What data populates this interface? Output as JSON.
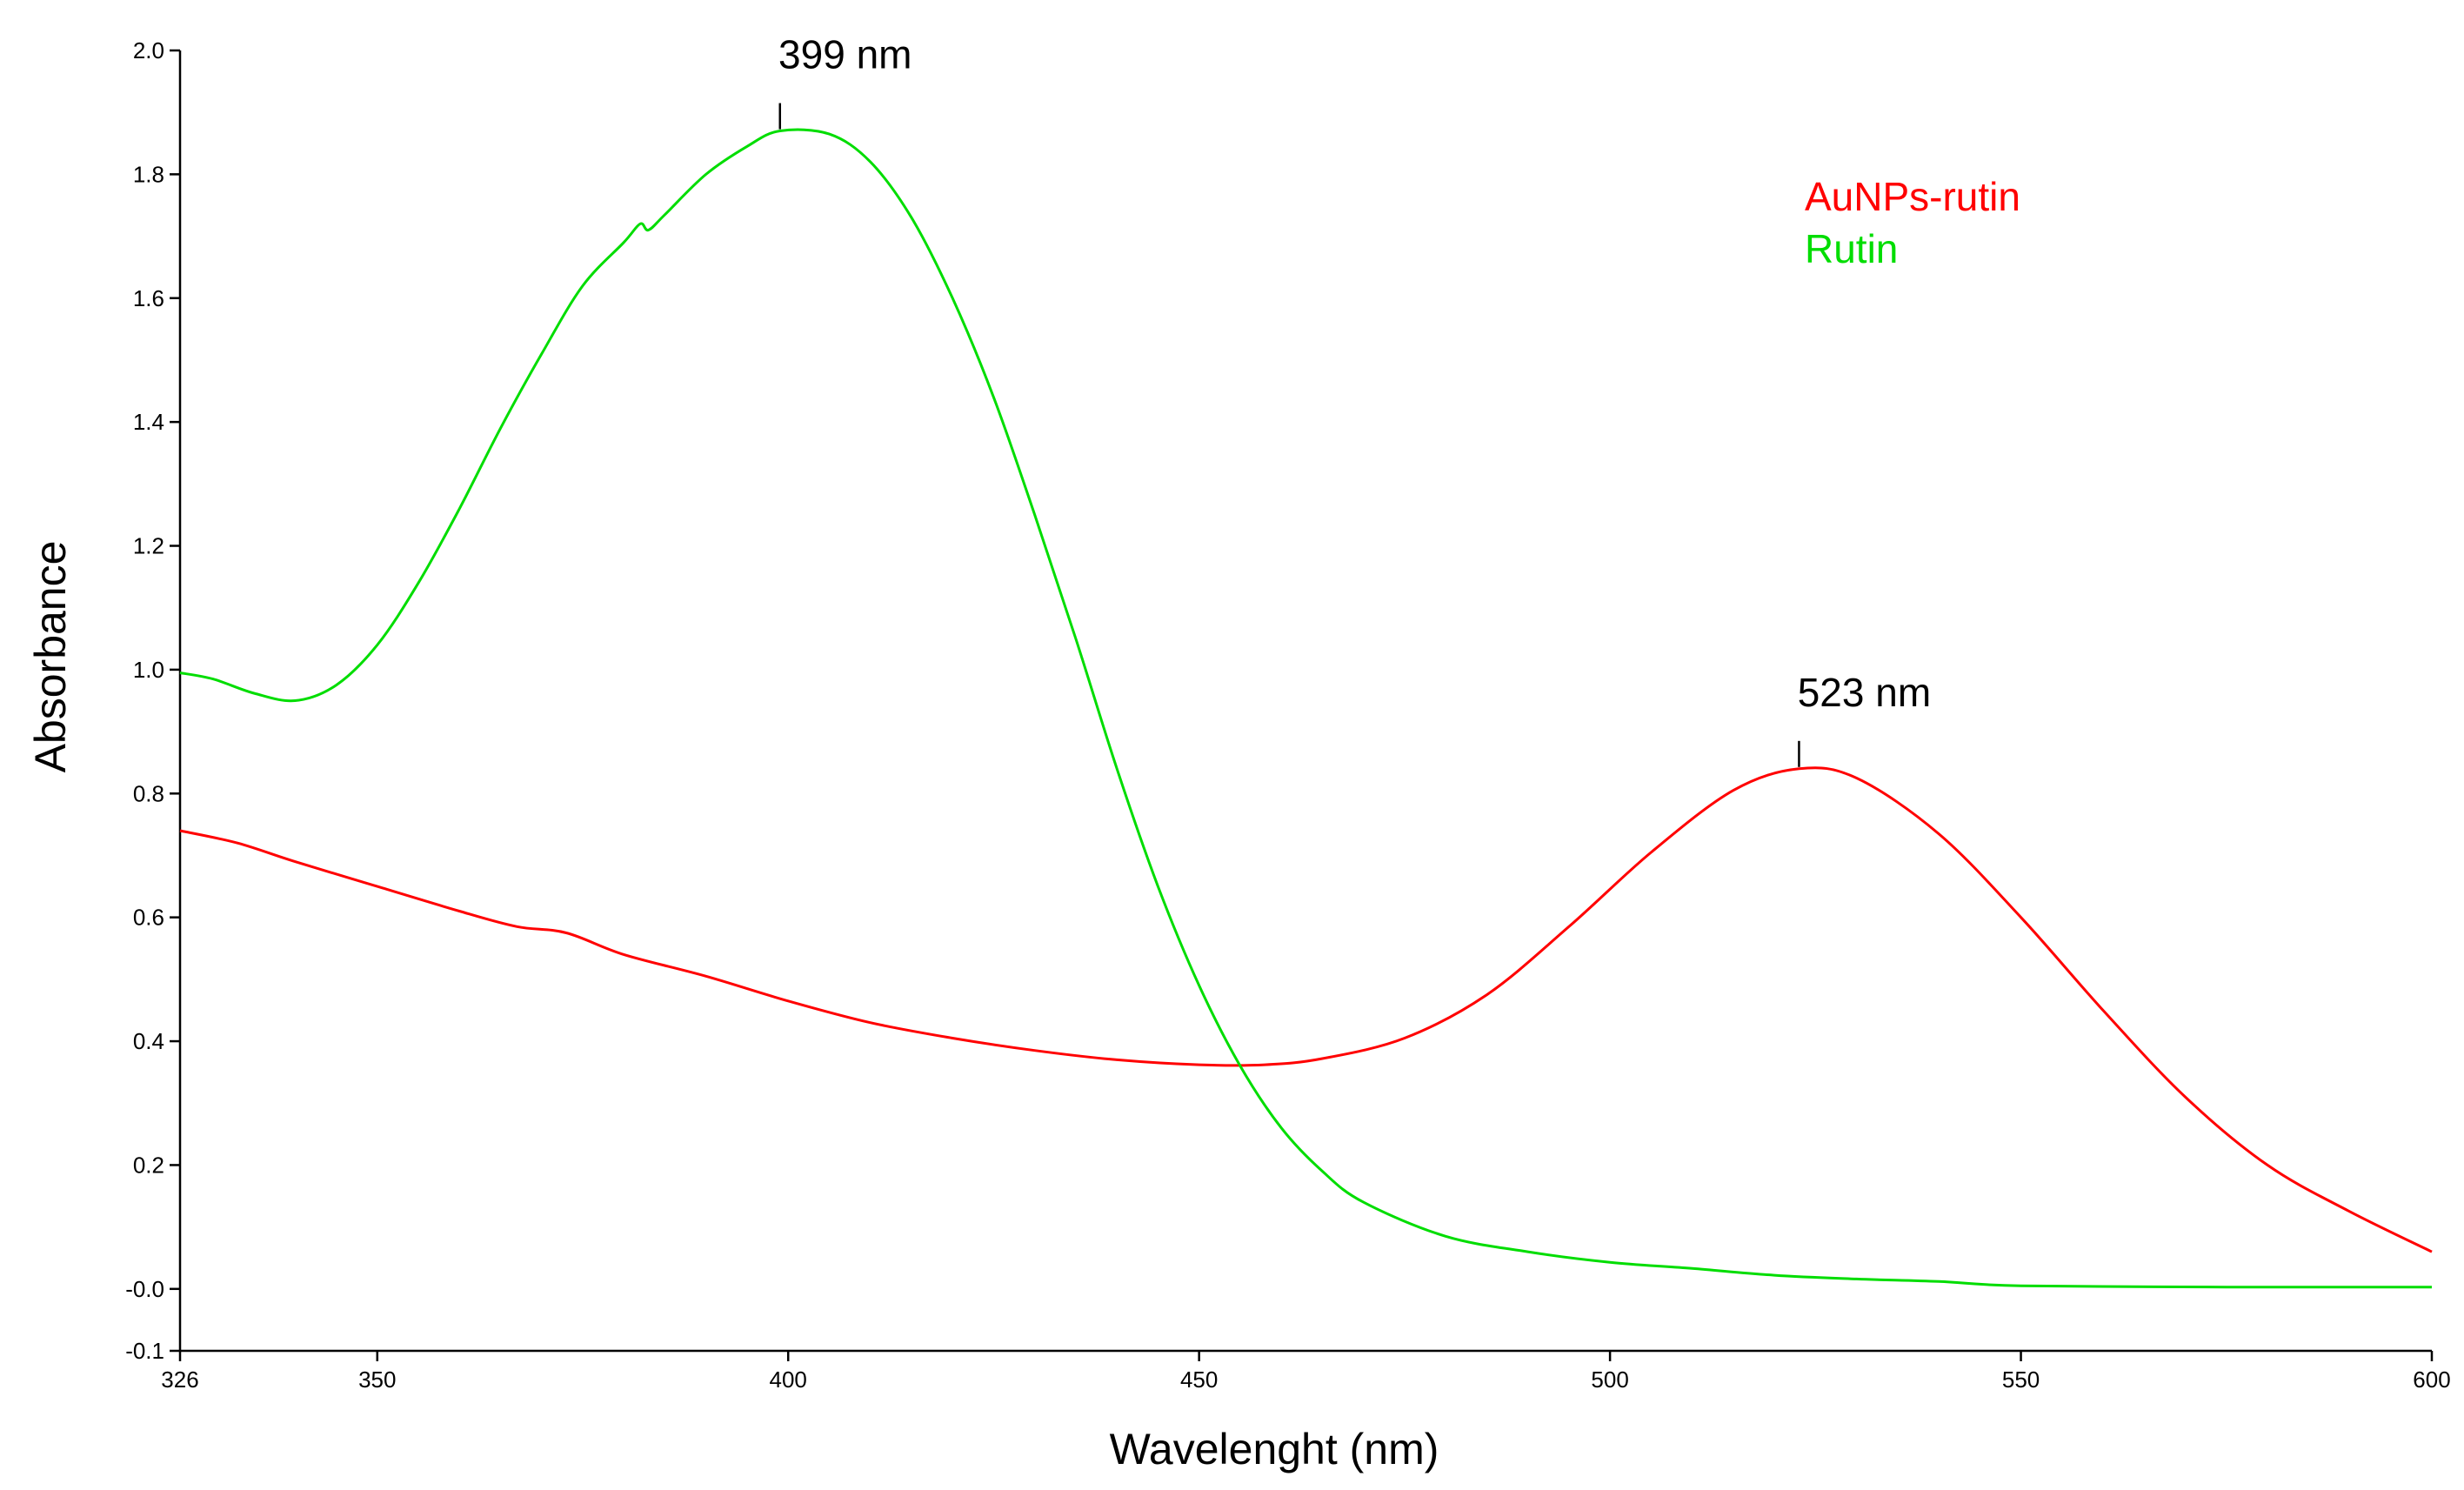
{
  "chart_data": {
    "type": "line",
    "title": "",
    "xlabel": "Wavelenght (nm)",
    "ylabel": "Absorbance",
    "xlim": [
      326,
      600
    ],
    "ylim": [
      -0.1,
      2.0
    ],
    "grid": false,
    "x_ticks": [
      326,
      350,
      400,
      450,
      500,
      550,
      600
    ],
    "x_tick_labels": [
      "326",
      "350",
      "400",
      "450",
      "500",
      "550",
      "600"
    ],
    "y_ticks": [
      -0.1,
      0.0,
      0.2,
      0.4,
      0.6,
      0.8,
      1.0,
      1.2,
      1.4,
      1.6,
      1.8,
      2.0
    ],
    "y_tick_labels": [
      "-0.1",
      "-0.0",
      "0.2",
      "0.4",
      "0.6",
      "0.8",
      "1.0",
      "1.2",
      "1.4",
      "1.6",
      "1.8",
      "2.0"
    ],
    "legend_position": "top-right",
    "series": [
      {
        "name": "AuNPs-rutin",
        "color": "#ff0000",
        "points": [
          [
            326,
            0.74
          ],
          [
            333,
            0.72
          ],
          [
            340,
            0.69
          ],
          [
            350,
            0.65
          ],
          [
            360,
            0.61
          ],
          [
            367,
            0.585
          ],
          [
            373,
            0.575
          ],
          [
            380,
            0.54
          ],
          [
            390,
            0.505
          ],
          [
            400,
            0.465
          ],
          [
            410,
            0.43
          ],
          [
            420,
            0.405
          ],
          [
            430,
            0.385
          ],
          [
            440,
            0.37
          ],
          [
            450,
            0.362
          ],
          [
            458,
            0.362
          ],
          [
            465,
            0.372
          ],
          [
            475,
            0.405
          ],
          [
            485,
            0.475
          ],
          [
            495,
            0.585
          ],
          [
            505,
            0.705
          ],
          [
            515,
            0.805
          ],
          [
            523,
            0.84
          ],
          [
            530,
            0.825
          ],
          [
            540,
            0.735
          ],
          [
            550,
            0.6
          ],
          [
            560,
            0.45
          ],
          [
            570,
            0.31
          ],
          [
            580,
            0.2
          ],
          [
            590,
            0.125
          ],
          [
            600,
            0.06
          ]
        ]
      },
      {
        "name": "Rutin",
        "color": "#00dd00",
        "points": [
          [
            326,
            0.995
          ],
          [
            330,
            0.985
          ],
          [
            335,
            0.962
          ],
          [
            340,
            0.95
          ],
          [
            345,
            0.975
          ],
          [
            350,
            1.04
          ],
          [
            355,
            1.14
          ],
          [
            360,
            1.26
          ],
          [
            365,
            1.39
          ],
          [
            370,
            1.51
          ],
          [
            375,
            1.62
          ],
          [
            380,
            1.69
          ],
          [
            382,
            1.72
          ],
          [
            383,
            1.71
          ],
          [
            385,
            1.735
          ],
          [
            390,
            1.8
          ],
          [
            395,
            1.845
          ],
          [
            399,
            1.87
          ],
          [
            405,
            1.865
          ],
          [
            410,
            1.82
          ],
          [
            415,
            1.73
          ],
          [
            420,
            1.6
          ],
          [
            425,
            1.44
          ],
          [
            430,
            1.25
          ],
          [
            435,
            1.05
          ],
          [
            440,
            0.84
          ],
          [
            445,
            0.65
          ],
          [
            450,
            0.49
          ],
          [
            455,
            0.36
          ],
          [
            460,
            0.26
          ],
          [
            465,
            0.19
          ],
          [
            470,
            0.14
          ],
          [
            480,
            0.085
          ],
          [
            490,
            0.06
          ],
          [
            500,
            0.043
          ],
          [
            510,
            0.033
          ],
          [
            520,
            0.022
          ],
          [
            530,
            0.016
          ],
          [
            540,
            0.012
          ],
          [
            550,
            0.005
          ],
          [
            575,
            0.003
          ],
          [
            600,
            0.003
          ]
        ]
      }
    ],
    "annotations": [
      {
        "text": "399 nm",
        "x": 399,
        "y": 1.87,
        "series": "Rutin"
      },
      {
        "text": "523 nm",
        "x": 523,
        "y": 0.84,
        "series": "AuNPs-rutin"
      }
    ]
  }
}
